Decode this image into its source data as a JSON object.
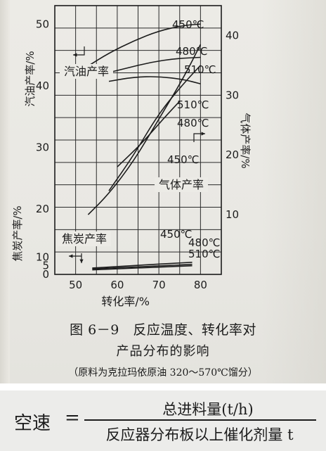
{
  "figure": {
    "caption_line1": "图 6－9　反应温度、转化率对",
    "caption_line2": "产品分布的影响",
    "caption_line3": "（原料为克拉玛依原油 320～570℃馏分）"
  },
  "chart_data": {
    "type": "line",
    "xlabel": "转化率/%",
    "x_ticks": [
      "50",
      "60",
      "70",
      "80"
    ],
    "xlim": [
      45,
      85
    ],
    "left_axis_upper": {
      "label": "汽油产率/%",
      "ticks": [
        "20",
        "30",
        "40",
        "50"
      ],
      "ylim": [
        13,
        53
      ]
    },
    "left_axis_lower": {
      "label": "焦炭产率/%",
      "ticks": [
        "0",
        "5",
        "10"
      ],
      "ylim": [
        0,
        13
      ]
    },
    "right_axis": {
      "label": "气体产率/%",
      "ticks": [
        "10",
        "20",
        "30",
        "40"
      ],
      "ylim": [
        0,
        45
      ]
    },
    "groups": [
      {
        "label": "汽油产率",
        "axis": "left_upper",
        "series": [
          {
            "name": "450℃",
            "x": [
              53,
              58,
              64,
              70,
              76,
              80
            ],
            "y": [
              43.2,
              45.3,
              47.3,
              48.9,
              49.8,
              50.0
            ]
          },
          {
            "name": "480℃",
            "x": [
              56,
              62,
              68,
              74,
              80
            ],
            "y": [
              41.8,
              42.8,
              43.8,
              44.4,
              44.6
            ]
          },
          {
            "name": "510℃",
            "x": [
              58,
              64,
              70,
              76,
              80
            ],
            "y": [
              40.7,
              41.4,
              41.5,
              41.0,
              40.3
            ]
          }
        ]
      },
      {
        "label": "气体产率",
        "axis": "right",
        "series": [
          {
            "name": "510℃",
            "x": [
              53,
              58,
              64,
              70,
              76,
              80
            ],
            "y": [
              10,
              13.5,
              19,
              26,
              33,
              38.5
            ]
          },
          {
            "name": "480℃",
            "x": [
              58,
              64,
              70,
              76,
              80
            ],
            "y": [
              14,
              20,
              27,
              32,
              35
            ]
          },
          {
            "name": "450℃",
            "x": [
              60,
              66,
              71,
              75
            ],
            "y": [
              18,
              22,
              26,
              29
            ]
          }
        ]
      },
      {
        "label": "焦炭产率",
        "axis": "left_lower",
        "series": [
          {
            "name": "450℃",
            "x": [
              54,
              60,
              66,
              72,
              78
            ],
            "y": [
              3.7,
              4.5,
              5.4,
              6.2,
              7.0
            ]
          },
          {
            "name": "480℃",
            "x": [
              54,
              60,
              66,
              72,
              78
            ],
            "y": [
              3.2,
              3.8,
              4.5,
              5.1,
              5.8
            ]
          },
          {
            "name": "510℃",
            "x": [
              54,
              60,
              66,
              72,
              78
            ],
            "y": [
              2.6,
              3.2,
              3.8,
              4.4,
              5.0
            ]
          }
        ]
      }
    ]
  },
  "formula": {
    "lhs": "空速",
    "equals": "=",
    "numerator": "总进料量(t/h)",
    "denominator": "反应器分布板以上催化剂量 t"
  }
}
